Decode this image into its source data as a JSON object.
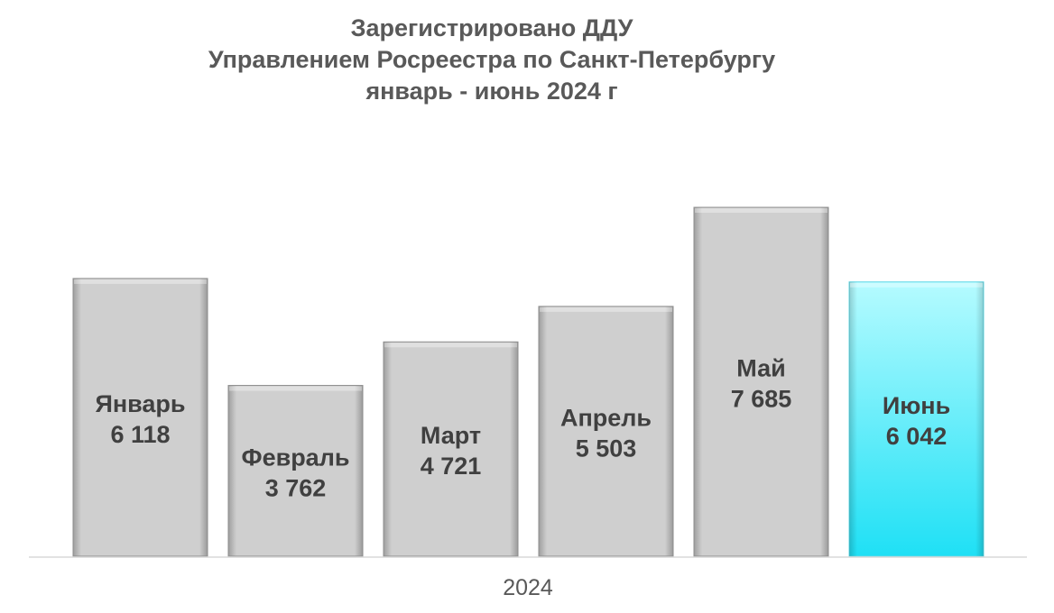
{
  "chart_data": {
    "type": "bar",
    "title": [
      "Зарегистрировано ДДУ",
      "Управлением Росреестра по Санкт-Петербургу",
      "январь - июнь 2024 г"
    ],
    "xlabel": "2024",
    "ylabel": "",
    "categories": [
      "Январь",
      "Февраль",
      "Март",
      "Апрель",
      "Май",
      "Июнь"
    ],
    "values": [
      6118,
      3762,
      4721,
      5503,
      7685,
      6042
    ],
    "value_labels": [
      "6 118",
      "3 762",
      "4 721",
      "5 503",
      "7 685",
      "6 042"
    ],
    "ylim": [
      0,
      7685
    ],
    "grid": false,
    "colors": {
      "default_bar": "#c8c8c8",
      "highlight_bar": "#33e6f7",
      "highlight_index": 5,
      "axis": "#d9d9d9"
    }
  }
}
